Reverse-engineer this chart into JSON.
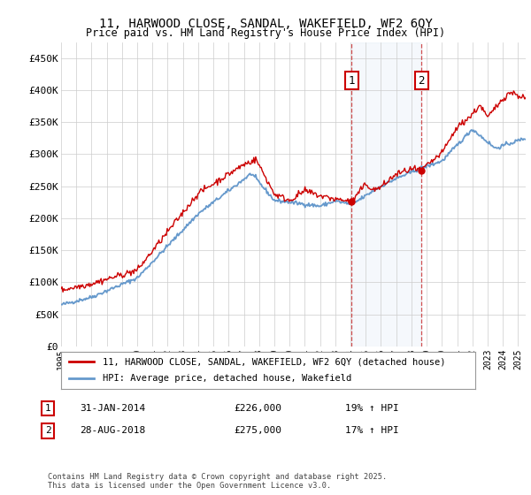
{
  "title1": "11, HARWOOD CLOSE, SANDAL, WAKEFIELD, WF2 6QY",
  "title2": "Price paid vs. HM Land Registry's House Price Index (HPI)",
  "ylabel_ticks": [
    "£0",
    "£50K",
    "£100K",
    "£150K",
    "£200K",
    "£250K",
    "£300K",
    "£350K",
    "£400K",
    "£450K"
  ],
  "ytick_values": [
    0,
    50000,
    100000,
    150000,
    200000,
    250000,
    300000,
    350000,
    400000,
    450000
  ],
  "ylim": [
    0,
    475000
  ],
  "xlim_start": 1995.0,
  "xlim_end": 2025.5,
  "xticks": [
    1995,
    1996,
    1997,
    1998,
    1999,
    2000,
    2001,
    2002,
    2003,
    2004,
    2005,
    2006,
    2007,
    2008,
    2009,
    2010,
    2011,
    2012,
    2013,
    2014,
    2015,
    2016,
    2017,
    2018,
    2019,
    2020,
    2021,
    2022,
    2023,
    2024,
    2025
  ],
  "marker1_x": 2014.08,
  "marker1_y": 226000,
  "marker1_label": "1",
  "marker1_date": "31-JAN-2014",
  "marker1_price": "£226,000",
  "marker1_hpi": "19% ↑ HPI",
  "marker2_x": 2018.65,
  "marker2_y": 275000,
  "marker2_label": "2",
  "marker2_date": "28-AUG-2018",
  "marker2_price": "£275,000",
  "marker2_hpi": "17% ↑ HPI",
  "property_color": "#cc0000",
  "hpi_color": "#6699cc",
  "hpi_fill_color": "#ddeeff",
  "legend_property": "11, HARWOOD CLOSE, SANDAL, WAKEFIELD, WF2 6QY (detached house)",
  "legend_hpi": "HPI: Average price, detached house, Wakefield",
  "footnote": "Contains HM Land Registry data © Crown copyright and database right 2025.\nThis data is licensed under the Open Government Licence v3.0.",
  "background_color": "#ffffff",
  "grid_color": "#cccccc"
}
